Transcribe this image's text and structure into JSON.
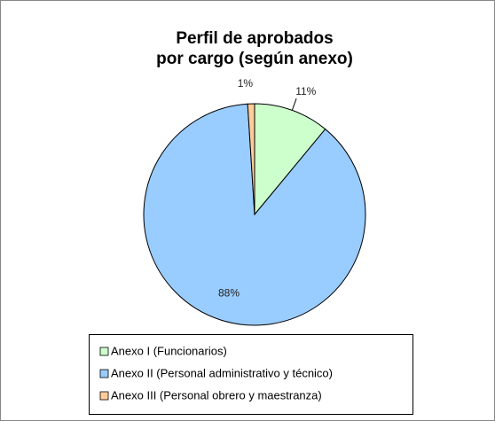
{
  "chart_data": {
    "type": "pie",
    "title": [
      "Perfil de aprobados",
      "por cargo (según anexo)"
    ],
    "categories": [
      "Anexo I (Funcionarios)",
      "Anexo II (Personal administrativo y técnico)",
      "Anexo III (Personal obrero y maestranza)"
    ],
    "values": [
      11,
      88,
      1
    ],
    "value_labels": [
      "11%",
      "88%",
      "1%"
    ],
    "colors": [
      "#ccffcc",
      "#99ccff",
      "#ffcc99"
    ],
    "legend": "bottom"
  }
}
